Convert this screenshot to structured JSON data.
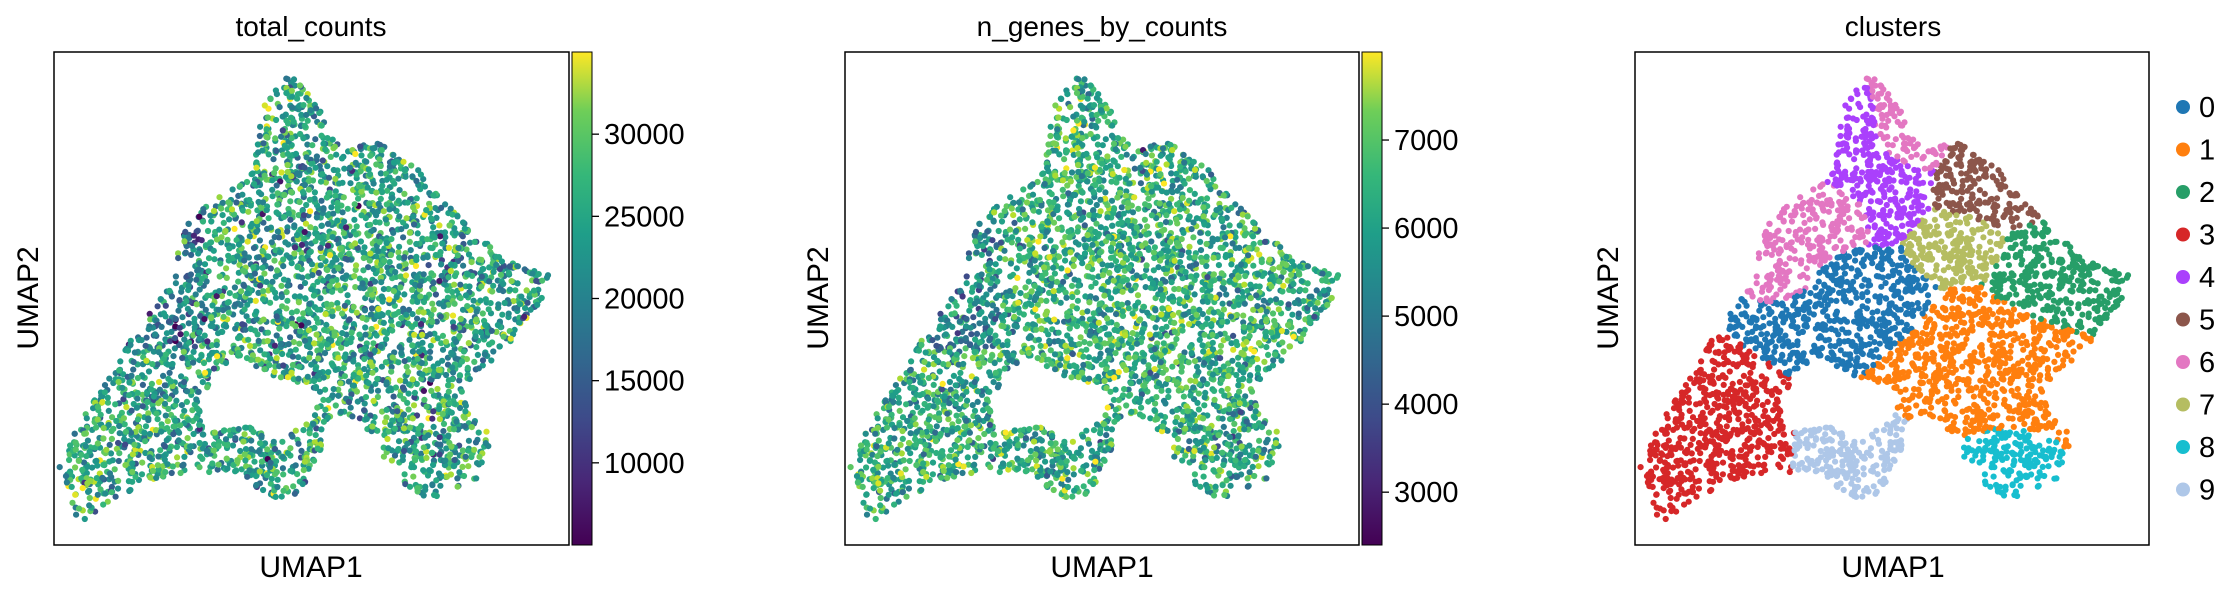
{
  "figure": {
    "panels": [
      {
        "title": "total_counts",
        "xlabel": "UMAP1",
        "ylabel": "UMAP2"
      },
      {
        "title": "n_genes_by_counts",
        "xlabel": "UMAP1",
        "ylabel": "UMAP2"
      },
      {
        "title": "clusters",
        "xlabel": "UMAP1",
        "ylabel": "UMAP2"
      }
    ]
  },
  "chart_data": [
    {
      "type": "scatter",
      "title": "total_counts",
      "xlabel": "UMAP1",
      "ylabel": "UMAP2",
      "colormap": "viridis",
      "color_range": [
        5000,
        35000
      ],
      "colorbar_ticks": [
        10000,
        15000,
        20000,
        25000,
        30000
      ]
    },
    {
      "type": "scatter",
      "title": "n_genes_by_counts",
      "xlabel": "UMAP1",
      "ylabel": "UMAP2",
      "colormap": "viridis",
      "color_range": [
        2400,
        8000
      ],
      "colorbar_ticks": [
        3000,
        4000,
        5000,
        6000,
        7000
      ]
    },
    {
      "type": "scatter",
      "title": "clusters",
      "xlabel": "UMAP1",
      "ylabel": "UMAP2",
      "legend_placement": "right",
      "categories": [
        {
          "label": "0",
          "color": "#1f77b4"
        },
        {
          "label": "1",
          "color": "#ff7f0e"
        },
        {
          "label": "2",
          "color": "#279e68"
        },
        {
          "label": "3",
          "color": "#d62728"
        },
        {
          "label": "4",
          "color": "#aa40fc"
        },
        {
          "label": "5",
          "color": "#8c564b"
        },
        {
          "label": "6",
          "color": "#e377c2"
        },
        {
          "label": "7",
          "color": "#b5bd61"
        },
        {
          "label": "8",
          "color": "#17becf"
        },
        {
          "label": "9",
          "color": "#aec7e8"
        }
      ]
    }
  ]
}
